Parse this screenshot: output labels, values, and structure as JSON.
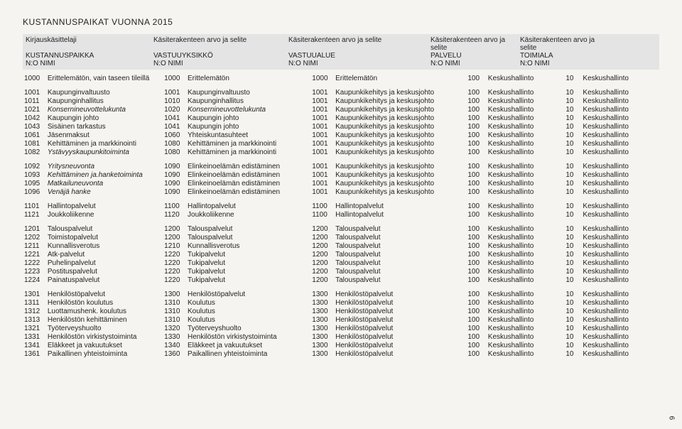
{
  "title": "KUSTANNUSPAIKAT VUONNA 2015",
  "header": {
    "top": [
      "Kirjauskäsittelaji",
      "Käsiterakenteen arvo ja selite",
      "Käsiterakenteen arvo ja selite",
      "Käsiterakenteen arvo ja selite",
      "Käsiterakenteen arvo ja selite"
    ],
    "mid": [
      "KUSTANNUSPAIKKA",
      "VASTUUYKSIKKÖ",
      "VASTUUALUE",
      "PALVELU",
      "TOIMIALA"
    ],
    "bot": [
      "N:O   NIMI",
      "N:O   NIMI",
      "N:O   NIMI",
      "N:O  NIMI",
      "N:O NIMI"
    ]
  },
  "groups": [
    [
      {
        "c1": "1000",
        "n1": "Erittelemätön, vain taseen tileillä",
        "c2": "1000",
        "n2": "Erittelemätön",
        "c3": "1000",
        "n3": "Erittelemätön",
        "c4": "100",
        "n4": "Keskushallinto",
        "c5": "10",
        "n5": "Keskushallinto"
      }
    ],
    [
      {
        "c1": "1001",
        "n1": "Kaupunginvaltuusto",
        "c2": "1001",
        "n2": "Kaupunginvaltuusto",
        "c3": "1001",
        "n3": "Kaupunkikehitys ja keskusjohto",
        "c4": "100",
        "n4": "Keskushallinto",
        "c5": "10",
        "n5": "Keskushallinto"
      },
      {
        "c1": "1011",
        "n1": "Kaupunginhallitus",
        "c2": "1010",
        "n2": "Kaupunginhallitus",
        "c3": "1001",
        "n3": "Kaupunkikehitys ja keskusjohto",
        "c4": "100",
        "n4": "Keskushallinto",
        "c5": "10",
        "n5": "Keskushallinto"
      },
      {
        "c1": "1021",
        "n1": "Konsernineuvottelukunta",
        "it1": true,
        "c2": "1020",
        "n2": "Konsernineuvottelukunta",
        "it2": true,
        "c3": "1001",
        "n3": "Kaupunkikehitys ja keskusjohto",
        "c4": "100",
        "n4": "Keskushallinto",
        "c5": "10",
        "n5": "Keskushallinto"
      },
      {
        "c1": "1042",
        "n1": "Kaupungin johto",
        "c2": "1041",
        "n2": "Kaupungin johto",
        "c3": "1001",
        "n3": "Kaupunkikehitys ja keskusjohto",
        "c4": "100",
        "n4": "Keskushallinto",
        "c5": "10",
        "n5": "Keskushallinto"
      },
      {
        "c1": "1043",
        "n1": "Sisäinen tarkastus",
        "c2": "1041",
        "n2": "Kaupungin johto",
        "c3": "1001",
        "n3": "Kaupunkikehitys ja keskusjohto",
        "c4": "100",
        "n4": "Keskushallinto",
        "c5": "10",
        "n5": "Keskushallinto"
      },
      {
        "c1": "1061",
        "n1": "Jäsenmaksut",
        "c2": "1060",
        "n2": "Yhteiskuntasuhteet",
        "c3": "1001",
        "n3": "Kaupunkikehitys ja keskusjohto",
        "c4": "100",
        "n4": "Keskushallinto",
        "c5": "10",
        "n5": "Keskushallinto"
      },
      {
        "c1": "1081",
        "n1": "Kehittäminen ja markkinointi",
        "c2": "1080",
        "n2": "Kehittäminen ja markkinointi",
        "c3": "1001",
        "n3": "Kaupunkikehitys ja keskusjohto",
        "c4": "100",
        "n4": "Keskushallinto",
        "c5": "10",
        "n5": "Keskushallinto"
      },
      {
        "c1": "1082",
        "n1": "Ystävyyskaupunkitoiminta",
        "it1": true,
        "c2": "1080",
        "n2": "Kehittäminen ja markkinointi",
        "c3": "1001",
        "n3": "Kaupunkikehitys ja keskusjohto",
        "c4": "100",
        "n4": "Keskushallinto",
        "c5": "10",
        "n5": "Keskushallinto"
      }
    ],
    [
      {
        "c1": "1092",
        "n1": "Yritysneuvonta",
        "it1": true,
        "c2": "1090",
        "n2": "Elinkeinoelämän edistäminen",
        "c3": "1001",
        "n3": "Kaupunkikehitys ja keskusjohto",
        "c4": "100",
        "n4": "Keskushallinto",
        "c5": "10",
        "n5": "Keskushallinto"
      },
      {
        "c1": "1093",
        "n1": "Kehittäminen ja.hanketoiminta",
        "it1": true,
        "c2": "1090",
        "n2": "Elinkeinoelämän edistäminen",
        "c3": "1001",
        "n3": "Kaupunkikehitys ja keskusjohto",
        "c4": "100",
        "n4": "Keskushallinto",
        "c5": "10",
        "n5": "Keskushallinto"
      },
      {
        "c1": "1095",
        "n1": "Matkailuneuvonta",
        "it1": true,
        "c2": "1090",
        "n2": "Elinkeinoelämän edistäminen",
        "c3": "1001",
        "n3": "Kaupunkikehitys ja keskusjohto",
        "c4": "100",
        "n4": "Keskushallinto",
        "c5": "10",
        "n5": "Keskushallinto"
      },
      {
        "c1": "1096",
        "n1": "Venäjä hanke",
        "it1": true,
        "c2": "1090",
        "n2": "Elinkeinoelämän edistäminen",
        "c3": "1001",
        "n3": "Kaupunkikehitys ja keskusjohto",
        "c4": "100",
        "n4": "Keskushallinto",
        "c5": "10",
        "n5": "Keskushallinto"
      }
    ],
    [
      {
        "c1": "1101",
        "n1": "Hallintopalvelut",
        "c2": "1100",
        "n2": "Hallintopalvelut",
        "c3": "1100",
        "n3": "Hallintopalvelut",
        "c4": "100",
        "n4": "Keskushallinto",
        "c5": "10",
        "n5": "Keskushallinto"
      },
      {
        "c1": "1121",
        "n1": "Joukkoliikenne",
        "c2": "1120",
        "n2": "Joukkoliikenne",
        "c3": "1100",
        "n3": "Hallintopalvelut",
        "c4": "100",
        "n4": "Keskushallinto",
        "c5": "10",
        "n5": "Keskushallinto"
      }
    ],
    [
      {
        "c1": "1201",
        "n1": "Talouspalvelut",
        "c2": "1200",
        "n2": "Talouspalvelut",
        "c3": "1200",
        "n3": "Talouspalvelut",
        "c4": "100",
        "n4": "Keskushallinto",
        "c5": "10",
        "n5": "Keskushallinto"
      },
      {
        "c1": "1202",
        "n1": "Toimistopalvelut",
        "c2": "1200",
        "n2": "Talouspalvelut",
        "c3": "1200",
        "n3": "Talouspalvelut",
        "c4": "100",
        "n4": "Keskushallinto",
        "c5": "10",
        "n5": "Keskushallinto"
      },
      {
        "c1": "1211",
        "n1": "Kunnallisverotus",
        "c2": "1210",
        "n2": "Kunnallisverotus",
        "c3": "1200",
        "n3": "Talouspalvelut",
        "c4": "100",
        "n4": "Keskushallinto",
        "c5": "10",
        "n5": "Keskushallinto"
      },
      {
        "c1": "1221",
        "n1": "Atk-palvelut",
        "c2": "1220",
        "n2": "Tukipalvelut",
        "c3": "1200",
        "n3": "Talouspalvelut",
        "c4": "100",
        "n4": "Keskushallinto",
        "c5": "10",
        "n5": "Keskushallinto"
      },
      {
        "c1": "1222",
        "n1": "Puhelinpalvelut",
        "c2": "1220",
        "n2": "Tukipalvelut",
        "c3": "1200",
        "n3": "Talouspalvelut",
        "c4": "100",
        "n4": "Keskushallinto",
        "c5": "10",
        "n5": "Keskushallinto"
      },
      {
        "c1": "1223",
        "n1": "Postituspalvelut",
        "c2": "1220",
        "n2": "Tukipalvelut",
        "c3": "1200",
        "n3": "Talouspalvelut",
        "c4": "100",
        "n4": "Keskushallinto",
        "c5": "10",
        "n5": "Keskushallinto"
      },
      {
        "c1": "1224",
        "n1": "Painatuspalvelut",
        "c2": "1220",
        "n2": "Tukipalvelut",
        "c3": "1200",
        "n3": "Talouspalvelut",
        "c4": "100",
        "n4": "Keskushallinto",
        "c5": "10",
        "n5": "Keskushallinto"
      }
    ],
    [
      {
        "c1": "1301",
        "n1": "Henkilöstöpalvelut",
        "c2": "1300",
        "n2": "Henkilöstöpalvelut",
        "c3": "1300",
        "n3": "Henkilöstöpalvelut",
        "c4": "100",
        "n4": "Keskushallinto",
        "c5": "10",
        "n5": "Keskushallinto"
      },
      {
        "c1": "1311",
        "n1": "Henkilöstön koulutus",
        "c2": "1310",
        "n2": "Koulutus",
        "c3": "1300",
        "n3": "Henkilöstöpalvelut",
        "c4": "100",
        "n4": "Keskushallinto",
        "c5": "10",
        "n5": "Keskushallinto"
      },
      {
        "c1": "1312",
        "n1": "Luottamushenk. koulutus",
        "c2": "1310",
        "n2": "Koulutus",
        "c3": "1300",
        "n3": "Henkilöstöpalvelut",
        "c4": "100",
        "n4": "Keskushallinto",
        "c5": "10",
        "n5": "Keskushallinto"
      },
      {
        "c1": "1313",
        "n1": "Henkilöstön kehittäminen",
        "c2": "1310",
        "n2": "Koulutus",
        "c3": "1300",
        "n3": "Henkilöstöpalvelut",
        "c4": "100",
        "n4": "Keskushallinto",
        "c5": "10",
        "n5": "Keskushallinto"
      },
      {
        "c1": "1321",
        "n1": "Työterveyshuolto",
        "c2": "1320",
        "n2": "Työterveyshuolto",
        "c3": "1300",
        "n3": "Henkilöstöpalvelut",
        "c4": "100",
        "n4": "Keskushallinto",
        "c5": "10",
        "n5": "Keskushallinto"
      },
      {
        "c1": "1331",
        "n1": "Henkilöstön virkistystoiminta",
        "c2": "1330",
        "n2": "Henkilöstön virkistystoiminta",
        "c3": "1300",
        "n3": "Henkilöstöpalvelut",
        "c4": "100",
        "n4": "Keskushallinto",
        "c5": "10",
        "n5": "Keskushallinto"
      },
      {
        "c1": "1341",
        "n1": "Eläkkeet ja vakuutukset",
        "c2": "1340",
        "n2": "Eläkkeet ja vakuutukset",
        "c3": "1300",
        "n3": "Henkilöstöpalvelut",
        "c4": "100",
        "n4": "Keskushallinto",
        "c5": "10",
        "n5": "Keskushallinto"
      },
      {
        "c1": "1361",
        "n1": "Paikallinen yhteistoiminta",
        "c2": "1360",
        "n2": "Paikallinen yhteistoiminta",
        "c3": "1300",
        "n3": "Henkilöstöpalvelut",
        "c4": "100",
        "n4": "Keskushallinto",
        "c5": "10",
        "n5": "Keskushallinto"
      }
    ]
  ],
  "pagenum": "9"
}
